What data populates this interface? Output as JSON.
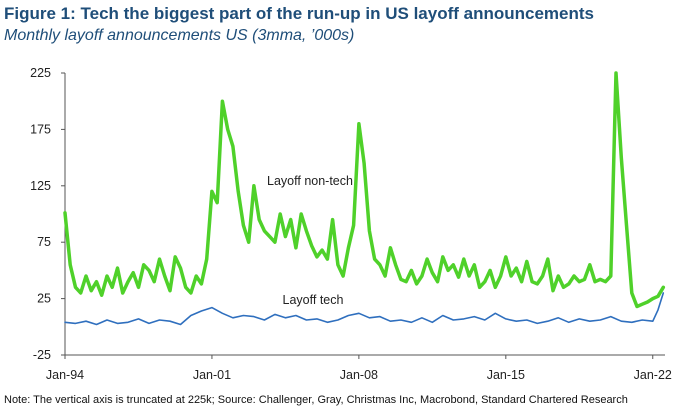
{
  "figure": {
    "title": "Figure 1: Tech the biggest part of the run-up in US layoff announcements",
    "subtitle": "Monthly layoff announcements US (3mma, ’000s)",
    "note": "Note: The vertical axis is truncated at 225k; Source: Challenger, Gray, Christmas Inc, Macrobond, Standard Chartered Research"
  },
  "colors": {
    "title": "#1f4e79",
    "non_tech": "#4fd12a",
    "tech": "#2f6fbe",
    "axis": "#555555"
  },
  "chart_data": {
    "type": "line",
    "title": "Monthly layoff announcements US (3mma, ’000s)",
    "xlabel": "",
    "ylabel": "",
    "ylim": [
      -25,
      225
    ],
    "y_ticks": [
      "225",
      "175",
      "125",
      "75",
      "25",
      "-25"
    ],
    "y_tick_values": [
      225,
      175,
      125,
      75,
      25,
      -25
    ],
    "xlim": [
      "1994-01",
      "2022-08"
    ],
    "x_ticks": [
      "Jan-94",
      "Jan-01",
      "Jan-08",
      "Jan-15",
      "Jan-22"
    ],
    "x_tick_values": [
      "1994-01",
      "2001-01",
      "2008-01",
      "2015-01",
      "2022-01"
    ],
    "grid": false,
    "legend": "none (series labelled directly on chart)",
    "annotations": [
      {
        "text": "Layoff non-tech",
        "series": "Layoff non-tech"
      },
      {
        "text": "Layoff tech",
        "series": "Layoff tech"
      }
    ],
    "series": [
      {
        "name": "Layoff non-tech",
        "x": [
          "1994-01",
          "1994-04",
          "1994-07",
          "1994-10",
          "1995-01",
          "1995-04",
          "1995-07",
          "1995-10",
          "1996-01",
          "1996-04",
          "1996-07",
          "1996-10",
          "1997-01",
          "1997-04",
          "1997-07",
          "1997-10",
          "1998-01",
          "1998-04",
          "1998-07",
          "1998-10",
          "1999-01",
          "1999-04",
          "1999-07",
          "1999-10",
          "2000-01",
          "2000-04",
          "2000-07",
          "2000-10",
          "2001-01",
          "2001-04",
          "2001-07",
          "2001-10",
          "2002-01",
          "2002-04",
          "2002-07",
          "2002-10",
          "2003-01",
          "2003-04",
          "2003-07",
          "2003-10",
          "2004-01",
          "2004-04",
          "2004-07",
          "2004-10",
          "2005-01",
          "2005-04",
          "2005-07",
          "2005-10",
          "2006-01",
          "2006-04",
          "2006-07",
          "2006-10",
          "2007-01",
          "2007-04",
          "2007-07",
          "2007-10",
          "2008-01",
          "2008-04",
          "2008-07",
          "2008-10",
          "2009-01",
          "2009-04",
          "2009-07",
          "2009-10",
          "2010-01",
          "2010-04",
          "2010-07",
          "2010-10",
          "2011-01",
          "2011-04",
          "2011-07",
          "2011-10",
          "2012-01",
          "2012-04",
          "2012-07",
          "2012-10",
          "2013-01",
          "2013-04",
          "2013-07",
          "2013-10",
          "2014-01",
          "2014-04",
          "2014-07",
          "2014-10",
          "2015-01",
          "2015-04",
          "2015-07",
          "2015-10",
          "2016-01",
          "2016-04",
          "2016-07",
          "2016-10",
          "2017-01",
          "2017-04",
          "2017-07",
          "2017-10",
          "2018-01",
          "2018-04",
          "2018-07",
          "2018-10",
          "2019-01",
          "2019-04",
          "2019-07",
          "2019-10",
          "2020-01",
          "2020-04",
          "2020-07",
          "2020-10",
          "2021-01",
          "2021-04",
          "2021-07",
          "2021-10",
          "2022-01",
          "2022-04",
          "2022-07"
        ],
        "values": [
          101,
          55,
          35,
          30,
          45,
          32,
          40,
          28,
          45,
          35,
          52,
          30,
          40,
          48,
          35,
          55,
          50,
          40,
          60,
          45,
          32,
          62,
          52,
          35,
          30,
          45,
          38,
          60,
          120,
          110,
          200,
          175,
          160,
          120,
          90,
          75,
          125,
          95,
          85,
          80,
          75,
          100,
          80,
          95,
          70,
          100,
          85,
          72,
          62,
          68,
          60,
          95,
          55,
          45,
          70,
          90,
          180,
          145,
          85,
          60,
          55,
          45,
          70,
          55,
          42,
          40,
          50,
          38,
          45,
          60,
          48,
          40,
          62,
          50,
          55,
          44,
          60,
          45,
          55,
          35,
          40,
          50,
          35,
          45,
          62,
          45,
          52,
          40,
          58,
          40,
          38,
          45,
          60,
          32,
          45,
          35,
          38,
          45,
          40,
          42,
          55,
          40,
          42,
          40,
          45,
          225,
          150,
          90,
          30,
          18,
          20,
          22,
          25,
          27,
          35
        ]
      },
      {
        "name": "Layoff tech",
        "x": [
          "1994-01",
          "1994-07",
          "1995-01",
          "1995-07",
          "1996-01",
          "1996-07",
          "1997-01",
          "1997-07",
          "1998-01",
          "1998-07",
          "1999-01",
          "1999-07",
          "2000-01",
          "2000-07",
          "2001-01",
          "2001-07",
          "2002-01",
          "2002-07",
          "2003-01",
          "2003-07",
          "2004-01",
          "2004-07",
          "2005-01",
          "2005-07",
          "2006-01",
          "2006-07",
          "2007-01",
          "2007-07",
          "2008-01",
          "2008-07",
          "2009-01",
          "2009-07",
          "2010-01",
          "2010-07",
          "2011-01",
          "2011-07",
          "2012-01",
          "2012-07",
          "2013-01",
          "2013-07",
          "2014-01",
          "2014-07",
          "2015-01",
          "2015-07",
          "2016-01",
          "2016-07",
          "2017-01",
          "2017-07",
          "2018-01",
          "2018-07",
          "2019-01",
          "2019-07",
          "2020-01",
          "2020-07",
          "2021-01",
          "2021-07",
          "2022-01",
          "2022-04",
          "2022-07"
        ],
        "values": [
          4,
          3,
          5,
          2,
          6,
          3,
          4,
          7,
          3,
          6,
          5,
          2,
          10,
          14,
          17,
          12,
          8,
          10,
          9,
          6,
          11,
          8,
          10,
          6,
          7,
          4,
          6,
          10,
          12,
          8,
          9,
          5,
          6,
          4,
          8,
          4,
          10,
          6,
          7,
          9,
          6,
          12,
          7,
          5,
          6,
          3,
          5,
          8,
          4,
          7,
          5,
          6,
          9,
          5,
          4,
          6,
          5,
          15,
          30
        ]
      }
    ]
  }
}
